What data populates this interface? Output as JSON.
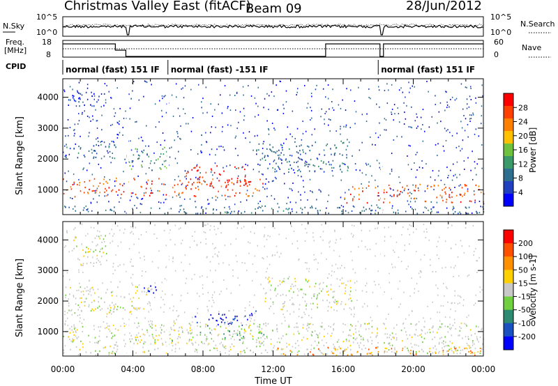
{
  "header": {
    "title": "Christmas Valley East (fitACF)",
    "beam": "Beam 09",
    "date": "28/Jun/2012"
  },
  "noise_panel": {
    "left_label": "N.Sky",
    "right_label": "N.Search",
    "left_ticks": [
      "10^5",
      "10^0"
    ],
    "right_ticks": [
      "10^5",
      "10^0"
    ]
  },
  "freq_panel": {
    "left_label_1": "Freq.",
    "left_label_2": "[MHz]",
    "left_ticks": [
      "18",
      "8"
    ],
    "right_label": "Nave",
    "right_ticks": [
      "60",
      "0"
    ]
  },
  "cpid": {
    "label": "CPID",
    "segments": [
      {
        "start": 0,
        "end": 6,
        "text": "normal (fast) 151 IF"
      },
      {
        "start": 6,
        "end": 18,
        "text": "normal (fast) -151 IF"
      },
      {
        "start": 18,
        "end": 24,
        "text": "normal (fast) 151 IF"
      }
    ]
  },
  "colors": {
    "power_scale": [
      "#0000ff",
      "#2040c0",
      "#2e6e8e",
      "#3c9a6a",
      "#6fc23e",
      "#ffc000",
      "#ff8000",
      "#ff4000",
      "#ff0000"
    ],
    "velocity_scale": [
      "#0000ff",
      "#1a50c0",
      "#2e8a70",
      "#70d040",
      "#c8c8c8",
      "#ffd000",
      "#ff9000",
      "#ff5000",
      "#ff0000"
    ]
  },
  "chart_data": [
    {
      "type": "heatmap",
      "name": "power",
      "xlabel": "",
      "ylabel": "Slant Range [km]",
      "xlim": [
        0,
        24
      ],
      "ylim": [
        200,
        4600
      ],
      "yticks": [
        "1000",
        "2000",
        "3000",
        "4000"
      ],
      "colorbar_label": "Power [dB]",
      "colorbar_ticks": [
        "28",
        "24",
        "20",
        "16",
        "12",
        "8",
        "4"
      ],
      "scatter_bands": [
        {
          "x": [
            0.2,
            2.5
          ],
          "y": [
            3700,
            4200
          ],
          "level": 1
        },
        {
          "x": [
            0.0,
            3.0
          ],
          "y": [
            2000,
            2500
          ],
          "level": 2
        },
        {
          "x": [
            3.5,
            6.0
          ],
          "y": [
            1600,
            2400
          ],
          "level": 3
        },
        {
          "x": [
            0.0,
            11.5
          ],
          "y": [
            800,
            1400
          ],
          "level": 7
        },
        {
          "x": [
            7.0,
            10.5
          ],
          "y": [
            1100,
            1800
          ],
          "level": 8
        },
        {
          "x": [
            11.0,
            16.5
          ],
          "y": [
            1600,
            2600
          ],
          "level": 2
        },
        {
          "x": [
            16.0,
            24.0
          ],
          "y": [
            600,
            1200
          ],
          "level": 7
        },
        {
          "x": [
            0.0,
            24.0
          ],
          "y": [
            250,
            500
          ],
          "level": 2
        }
      ]
    },
    {
      "type": "heatmap",
      "name": "velocity",
      "xlabel": "Time UT",
      "ylabel": "Slant Range [km]",
      "xlim": [
        0,
        24
      ],
      "ylim": [
        200,
        4600
      ],
      "xticks": [
        "00:00",
        "04:00",
        "08:00",
        "12:00",
        "16:00",
        "20:00",
        "00:00"
      ],
      "yticks": [
        "1000",
        "2000",
        "3000",
        "4000"
      ],
      "colorbar_label": "Velocity [m s-1]",
      "colorbar_ticks": [
        "200",
        "100",
        "50",
        "15",
        "-15",
        "-50",
        "-100",
        "-200"
      ],
      "scatter_bands": [
        {
          "x": [
            0.5,
            2.5
          ],
          "y": [
            3200,
            4200
          ],
          "level": 4
        },
        {
          "x": [
            0.0,
            5.0
          ],
          "y": [
            1600,
            2500
          ],
          "level": 4
        },
        {
          "x": [
            4.5,
            5.5
          ],
          "y": [
            2200,
            2600
          ],
          "level": 0
        },
        {
          "x": [
            7.5,
            11.0
          ],
          "y": [
            1200,
            1700
          ],
          "level": 0
        },
        {
          "x": [
            6.0,
            11.5
          ],
          "y": [
            700,
            1200
          ],
          "level": 3
        },
        {
          "x": [
            11.5,
            16.5
          ],
          "y": [
            1700,
            2800
          ],
          "level": 4
        },
        {
          "x": [
            0.0,
            24.0
          ],
          "y": [
            300,
            1300
          ],
          "level": 4
        },
        {
          "x": [
            12.0,
            24.0
          ],
          "y": [
            250,
            500
          ],
          "level": 6
        }
      ]
    }
  ]
}
